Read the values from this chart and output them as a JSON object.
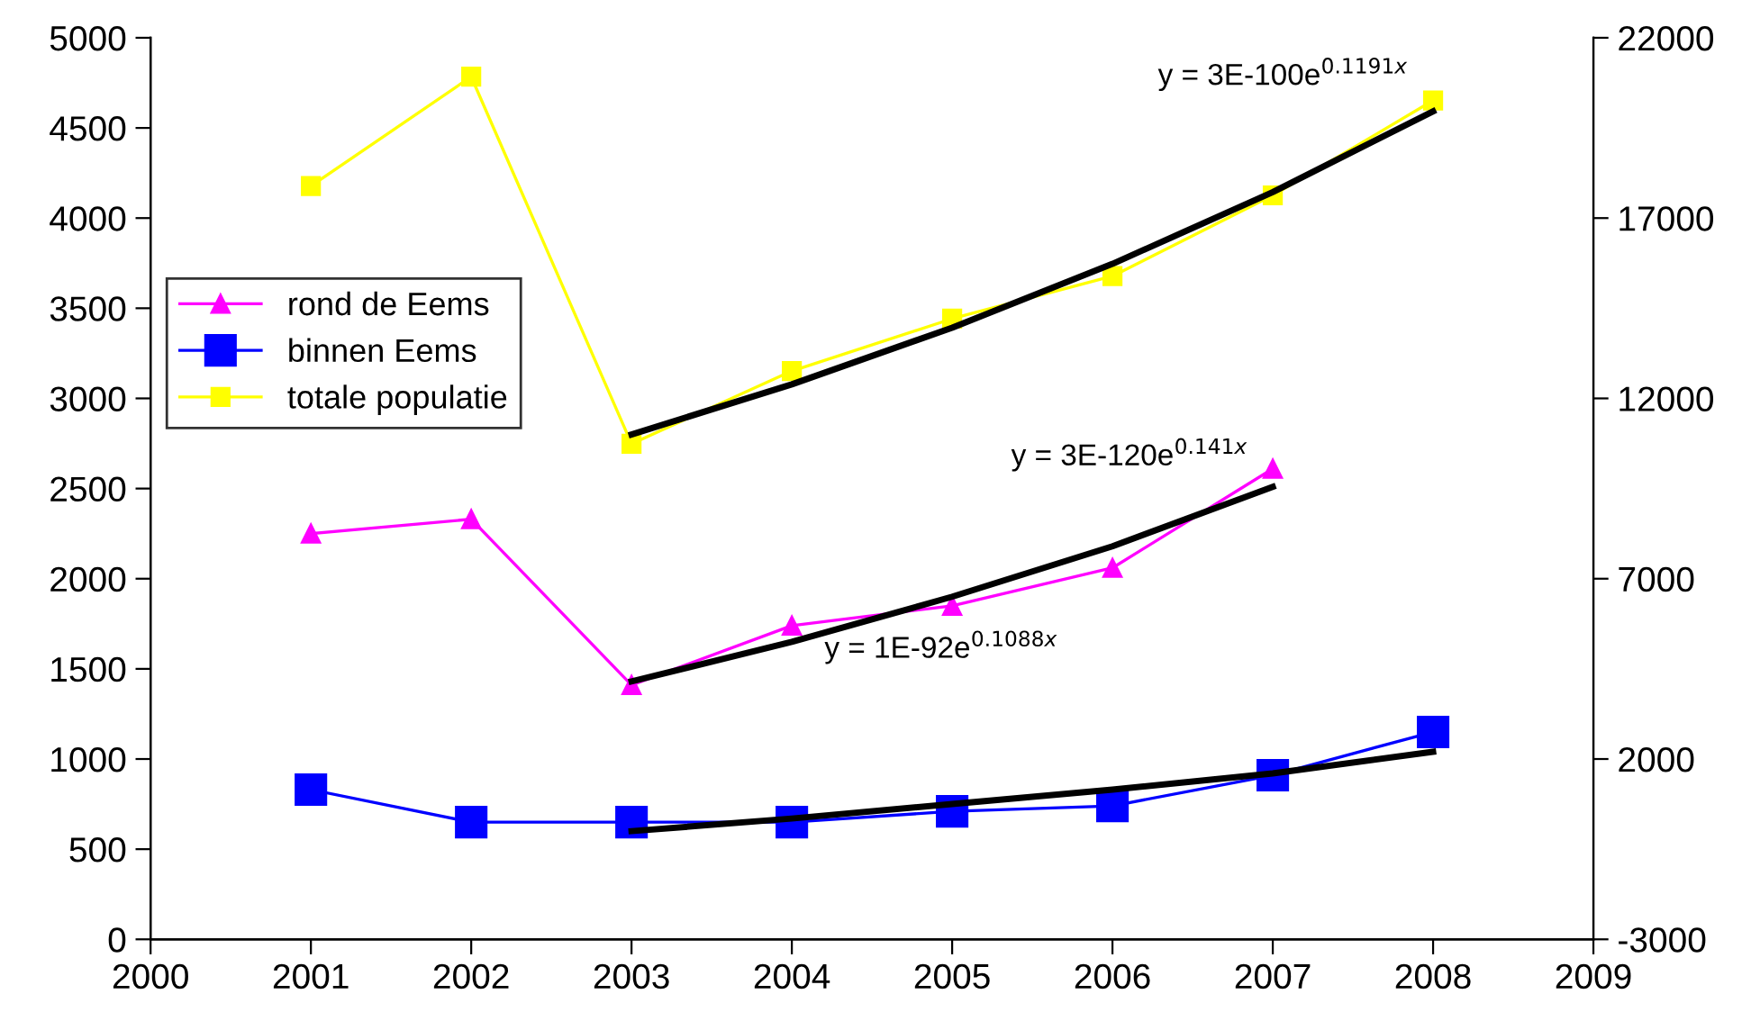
{
  "chart_data": {
    "type": "line",
    "x": [
      2001,
      2002,
      2003,
      2004,
      2005,
      2006,
      2007,
      2008
    ],
    "xlim": [
      2000,
      2009
    ],
    "xticks": [
      2000,
      2001,
      2002,
      2003,
      2004,
      2005,
      2006,
      2007,
      2008,
      2009
    ],
    "ylim": [
      0,
      5000
    ],
    "yticks": [
      0,
      500,
      1000,
      1500,
      2000,
      2500,
      3000,
      3500,
      4000,
      4500,
      5000
    ],
    "y2lim": [
      -3000,
      22000
    ],
    "y2ticks": [
      -3000,
      2000,
      7000,
      12000,
      17000,
      22000
    ],
    "grid": false,
    "legend": "left",
    "series": [
      {
        "name": "rond de Eems",
        "color": "#ff00ff",
        "marker": "triangle",
        "x": [
          2001,
          2002,
          2003,
          2004,
          2005,
          2006,
          2007
        ],
        "values": [
          2250,
          2330,
          1410,
          1740,
          1850,
          2060,
          2610
        ]
      },
      {
        "name": "binnen Eems",
        "color": "#0000ff",
        "marker": "square",
        "values": [
          830,
          650,
          650,
          650,
          710,
          740,
          910,
          1150
        ]
      },
      {
        "name": "totale populatie",
        "color": "#ffff00",
        "marker": "square",
        "axis": "y2",
        "values": [
          17890,
          20920,
          10740,
          12760,
          14210,
          15390,
          17630,
          20260
        ]
      },
      {
        "type": "line",
        "color": "#000000",
        "marker": "none",
        "axis": "y2",
        "x": [
          2003,
          2004,
          2005,
          2006,
          2007,
          2008
        ],
        "values": [
          11000,
          12390,
          13960,
          15730,
          17720,
          19960
        ]
      },
      {
        "type": "line",
        "color": "#000000",
        "marker": "none",
        "x": [
          2003,
          2004,
          2005,
          2006,
          2007
        ],
        "values": [
          1430,
          1650,
          1900,
          2180,
          2510
        ]
      },
      {
        "type": "line",
        "color": "#000000",
        "marker": "none",
        "x": [
          2003,
          2004,
          2005,
          2006,
          2007,
          2008
        ],
        "values": [
          600,
          670,
          750,
          830,
          920,
          1040
        ]
      }
    ],
    "annotations": [
      "y = 3E-100e$^{0.1191x}$",
      "y = 3E-120e$^{0.141x}$",
      "y = 1E-92e$^{0.1088x}$"
    ]
  }
}
